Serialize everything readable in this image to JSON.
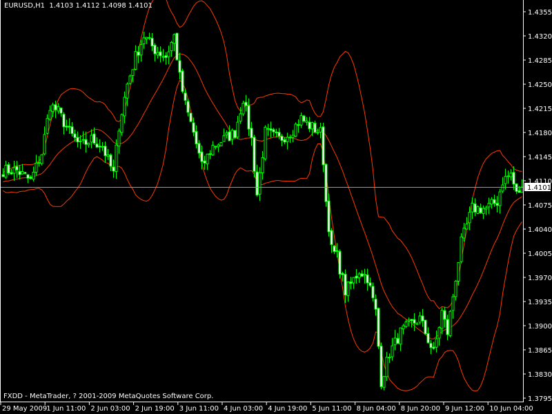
{
  "header": {
    "symbol": "EURUSD,H1",
    "ohlc": "1.4103 1.4112 1.4098 1.4101"
  },
  "footer": {
    "copyright": "FXDD - MetaTrader, ? 2001-2009 MetaQuotes Software Corp."
  },
  "colors": {
    "background": "#000000",
    "candle": "#00ff00",
    "bull_body": "#000000",
    "bear_body": "#ffffff",
    "bands": "#ff3a00",
    "axis": "#ffffff",
    "price_line": "#8c9bb0"
  },
  "chart_data": {
    "type": "candlestick",
    "indicator": "Bollinger Bands (upper, middle, lower)",
    "ylim": [
      1.3795,
      1.4355
    ],
    "y_ticks": [
      "1.4355",
      "1.4320",
      "1.4285",
      "1.4250",
      "1.4215",
      "1.4180",
      "1.4145",
      "1.4110",
      "1.4075",
      "1.4040",
      "1.4005",
      "1.3970",
      "1.3935",
      "1.3900",
      "1.3865",
      "1.3830",
      "1.3795"
    ],
    "x_ticks": [
      "29 May 2009",
      "1 Jun 11:00",
      "2 Jun 03:00",
      "2 Jun 19:00",
      "3 Jun 11:00",
      "4 Jun 03:00",
      "4 Jun 19:00",
      "5 Jun 11:00",
      "8 Jun 04:00",
      "8 Jun 20:00",
      "9 Jun 12:00",
      "10 Jun 04:00"
    ],
    "current_price": "1.4101",
    "close_anchors": [
      [
        0,
        1.4125
      ],
      [
        5,
        1.4125
      ],
      [
        10,
        1.411
      ],
      [
        14,
        1.415
      ],
      [
        17,
        1.422
      ],
      [
        20,
        1.421
      ],
      [
        24,
        1.418
      ],
      [
        28,
        1.416
      ],
      [
        32,
        1.417
      ],
      [
        36,
        1.416
      ],
      [
        40,
        1.412
      ],
      [
        42,
        1.419
      ],
      [
        45,
        1.425
      ],
      [
        48,
        1.429
      ],
      [
        51,
        1.432
      ],
      [
        55,
        1.43
      ],
      [
        59,
        1.429
      ],
      [
        62,
        1.432
      ],
      [
        64,
        1.426
      ],
      [
        66,
        1.422
      ],
      [
        69,
        1.418
      ],
      [
        72,
        1.413
      ],
      [
        76,
        1.416
      ],
      [
        80,
        1.417
      ],
      [
        84,
        1.418
      ],
      [
        87,
        1.423
      ],
      [
        90,
        1.417
      ],
      [
        92,
        1.409
      ],
      [
        95,
        1.418
      ],
      [
        100,
        1.417
      ],
      [
        104,
        1.418
      ],
      [
        108,
        1.42
      ],
      [
        111,
        1.419
      ],
      [
        115,
        1.418
      ],
      [
        116,
        1.414
      ],
      [
        117,
        1.408
      ],
      [
        119,
        1.401
      ],
      [
        121,
        1.4
      ],
      [
        124,
        1.395
      ],
      [
        126,
        1.396
      ],
      [
        129,
        1.398
      ],
      [
        132,
        1.397
      ],
      [
        135,
        1.392
      ],
      [
        136,
        1.387
      ],
      [
        137,
        1.382
      ],
      [
        140,
        1.386
      ],
      [
        144,
        1.389
      ],
      [
        147,
        1.39
      ],
      [
        151,
        1.391
      ],
      [
        154,
        1.388
      ],
      [
        156,
        1.386
      ],
      [
        159,
        1.392
      ],
      [
        161,
        1.389
      ],
      [
        164,
        1.397
      ],
      [
        166,
        1.402
      ],
      [
        170,
        1.407
      ],
      [
        175,
        1.407
      ],
      [
        179,
        1.408
      ],
      [
        181,
        1.411
      ],
      [
        184,
        1.412
      ],
      [
        186,
        1.409
      ],
      [
        188,
        1.4101
      ]
    ]
  }
}
